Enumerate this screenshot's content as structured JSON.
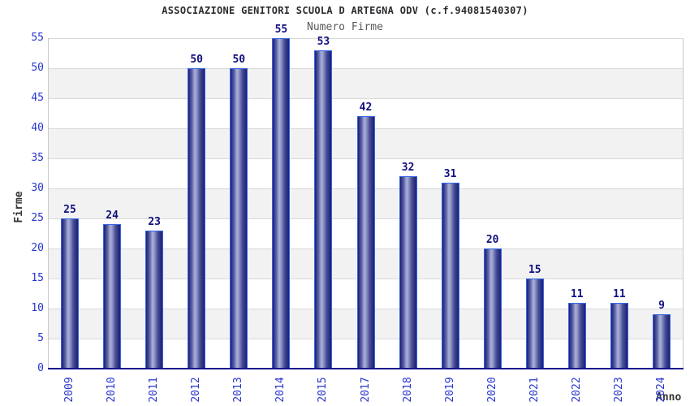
{
  "chart_data": {
    "type": "bar",
    "title": "ASSOCIAZIONE GENITORI SCUOLA D ARTEGNA ODV (c.f.94081540307)",
    "subtitle": "Numero Firme",
    "categories": [
      "2009",
      "2010",
      "2011",
      "2012",
      "2013",
      "2014",
      "2015",
      "2017",
      "2018",
      "2019",
      "2020",
      "2021",
      "2022",
      "2023",
      "2024"
    ],
    "values": [
      25,
      24,
      23,
      50,
      50,
      55,
      53,
      42,
      32,
      31,
      20,
      15,
      11,
      11,
      9
    ],
    "xlabel": "Anno",
    "ylabel": "Firme",
    "ylim": [
      0,
      55
    ],
    "ytick_step": 5,
    "grid": true,
    "legend": "none",
    "band_colors": [
      "#ffffff",
      "#f2f2f2"
    ],
    "colors": {
      "bar_border": "#3565e6",
      "bar_edge_dark": "#1e1e72",
      "bar_highlight": "#abb1d9",
      "tick_label": "#2836cf",
      "value_label": "#101080",
      "axis_line": "#16168c",
      "gridline": "#d9d9d9",
      "plot_border": "#c9c9c9",
      "title": "#2c2c30",
      "subtitle": "#5a5a5a",
      "axis_title": "#363636"
    }
  }
}
